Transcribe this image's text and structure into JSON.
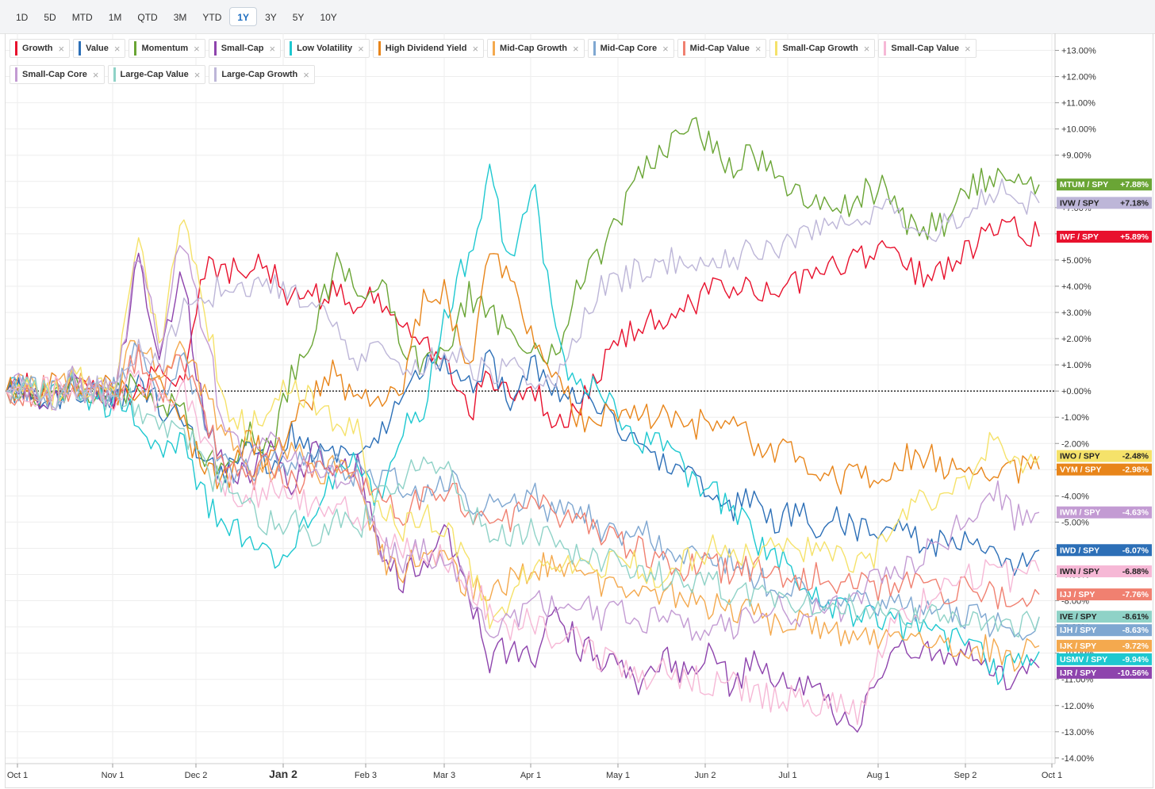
{
  "toolbar": {
    "ranges": [
      "1D",
      "5D",
      "MTD",
      "1M",
      "QTD",
      "3M",
      "YTD",
      "1Y",
      "3Y",
      "5Y",
      "10Y"
    ],
    "active": "1Y"
  },
  "legend": [
    {
      "name": "Growth",
      "color": "#e8112d"
    },
    {
      "name": "Value",
      "color": "#2c6fb7"
    },
    {
      "name": "Momentum",
      "color": "#6aa535"
    },
    {
      "name": "Small-Cap",
      "color": "#8e44ad"
    },
    {
      "name": "Low Volatility",
      "color": "#1ec8d0"
    },
    {
      "name": "High Dividend Yield",
      "color": "#e8851a"
    },
    {
      "name": "Mid-Cap Growth",
      "color": "#f4a94e"
    },
    {
      "name": "Mid-Cap Core",
      "color": "#7fa7d1"
    },
    {
      "name": "Mid-Cap Value",
      "color": "#f08070"
    },
    {
      "name": "Small-Cap Growth",
      "color": "#f5e26a"
    },
    {
      "name": "Small-Cap Value",
      "color": "#f6b8d6"
    },
    {
      "name": "Small-Cap Core",
      "color": "#c39bd3"
    },
    {
      "name": "Large-Cap Value",
      "color": "#8fd2c7"
    },
    {
      "name": "Large-Cap Growth",
      "color": "#bdb6d8"
    }
  ],
  "chart_data": {
    "type": "line",
    "x_ticks": [
      "Oct 1",
      "Nov 1",
      "Dec 2",
      "Jan 2",
      "Feb 3",
      "Mar 3",
      "Apr 1",
      "May 1",
      "Jun 2",
      "Jul 1",
      "Aug 1",
      "Sep 2",
      "Oct 1"
    ],
    "x_major_tick": "Jan 2",
    "y_ticks": [
      "+13.00%",
      "+12.00%",
      "+11.00%",
      "+10.00%",
      "+9.00%",
      "+8.00%",
      "+7.00%",
      "+6.00%",
      "+5.00%",
      "+4.00%",
      "+3.00%",
      "+2.00%",
      "+1.00%",
      "+0.00%",
      "-1.00%",
      "-2.00%",
      "-3.00%",
      "-4.00%",
      "-5.00%",
      "-6.00%",
      "-7.00%",
      "-8.00%",
      "-9.00%",
      "-10.00%",
      "-11.00%",
      "-12.00%",
      "-13.00%",
      "-14.00%"
    ],
    "ylim": [
      -14,
      13.5
    ],
    "zero_line": true,
    "series": [
      {
        "name": "Growth",
        "ticker": "IWF / SPY",
        "last": "+5.89%",
        "color": "#e8112d",
        "anchors": [
          0,
          0.3,
          -0.5,
          0.5,
          0,
          -0.2,
          0.2,
          0.6,
          0.3,
          4.8,
          4.5,
          4.8,
          4.5,
          3.4,
          3.5,
          3.8,
          3.4,
          3.6,
          3.0,
          2.0,
          1.2,
          -1.0,
          0.8,
          -0.5,
          0.2,
          -1.4,
          -0.9,
          0.8,
          2.0,
          2.5,
          2.9,
          3.2,
          3.8,
          3.6,
          3.9,
          3.7,
          4.2,
          4.7,
          4.9,
          5.2,
          5.7,
          4.7,
          4.3,
          4.6,
          5.6,
          6.5,
          6.2,
          5.9
        ]
      },
      {
        "name": "Value",
        "ticker": "IWD / SPY",
        "last": "-6.07%",
        "color": "#2c6fb7",
        "anchors": [
          0,
          0.1,
          -0.4,
          0.2,
          0,
          -0.3,
          0.1,
          -0.5,
          -1.3,
          -2.7,
          -3.2,
          -2.0,
          -3.0,
          -1.5,
          -2.6,
          -2.3,
          -2.8,
          -1.8,
          0.3,
          1.0,
          1.3,
          0.3,
          1.0,
          -0.5,
          1.1,
          0.2,
          -0.1,
          -0.3,
          -1.8,
          -2.3,
          -2.6,
          -2.8,
          -3.7,
          -4.4,
          -4.2,
          -4.9,
          -4.5,
          -5.3,
          -4.9,
          -5.4,
          -5.7,
          -5.3,
          -5.9,
          -5.6,
          -5.8,
          -6.0,
          -6.6,
          -6.07
        ]
      },
      {
        "name": "Momentum",
        "ticker": "MTUM / SPY",
        "last": "+7.88%",
        "color": "#6aa535",
        "anchors": [
          0,
          0.2,
          -0.3,
          0.1,
          -0.2,
          -0.1,
          0.2,
          -0.4,
          -0.8,
          -2.3,
          -3.1,
          -1.6,
          -2.2,
          0.5,
          2.5,
          4.8,
          3.8,
          4.3,
          2.0,
          0.8,
          1.4,
          3.7,
          3.0,
          2.0,
          1.9,
          1.3,
          4.2,
          5.2,
          6.8,
          8.6,
          9.4,
          10.5,
          9.3,
          8.4,
          9.1,
          8.0,
          7.8,
          7.2,
          6.8,
          7.6,
          7.8,
          6.5,
          6.2,
          6.6,
          7.9,
          8.4,
          8.2,
          7.88
        ]
      },
      {
        "name": "Small-Cap",
        "ticker": "IJR / SPY",
        "last": "-10.56%",
        "color": "#8e44ad",
        "anchors": [
          0,
          0.2,
          -0.6,
          0.4,
          -0.3,
          -0.2,
          5.0,
          1.0,
          4.8,
          -1.2,
          -2.7,
          -3.3,
          -2.0,
          -3.6,
          -2.1,
          -3.2,
          -2.8,
          -6.4,
          -7.2,
          -6.5,
          -5.3,
          -7.4,
          -10.5,
          -9.6,
          -10.3,
          -8.3,
          -9.7,
          -10.2,
          -10.5,
          -11.2,
          -10.2,
          -10.9,
          -9.9,
          -11.3,
          -10.4,
          -10.9,
          -11.4,
          -10.8,
          -12.8,
          -12.3,
          -10.1,
          -9.8,
          -10.0,
          -10.4,
          -10.0,
          -10.9,
          -11.0,
          -10.56
        ]
      },
      {
        "name": "Low Volatility",
        "ticker": "USMV / SPY",
        "last": "-9.94%",
        "color": "#1ec8d0",
        "anchors": [
          0,
          0.1,
          -0.2,
          0.3,
          -0.4,
          -0.6,
          -1.0,
          -2.4,
          -1.6,
          -4.1,
          -5.2,
          -5.5,
          -6.4,
          -5.9,
          -4.7,
          -3.1,
          -2.7,
          -4.2,
          -1.2,
          -0.7,
          3.0,
          5.2,
          8.2,
          4.6,
          7.8,
          2.4,
          -0.1,
          0.4,
          -1.3,
          -1.9,
          -2.2,
          -3.2,
          -3.8,
          -4.4,
          -5.6,
          -6.2,
          -7.1,
          -7.9,
          -8.3,
          -8.6,
          -8.8,
          -9.0,
          -9.2,
          -9.5,
          -9.7,
          -10.8,
          -10.5,
          -9.94
        ]
      },
      {
        "name": "High Dividend Yield",
        "ticker": "VYM / SPY",
        "last": "-2.98%",
        "color": "#e8851a",
        "anchors": [
          0,
          -0.1,
          0.3,
          -0.2,
          0.2,
          0,
          -0.3,
          0.1,
          -1.3,
          -3.1,
          -3.4,
          -1.8,
          -2.8,
          -1.1,
          -0.2,
          0.8,
          -0.6,
          -0.2,
          0.3,
          3.5,
          3.8,
          0.6,
          5.2,
          4.3,
          1.6,
          0.7,
          -1.1,
          -0.8,
          -1.3,
          -0.9,
          -1.1,
          -1.5,
          -1.0,
          -1.3,
          -1.9,
          -2.4,
          -2.3,
          -3.1,
          -3.4,
          -3.2,
          -3.2,
          -2.5,
          -2.4,
          -3.1,
          -2.7,
          -3.2,
          -3.0,
          -2.98
        ]
      },
      {
        "name": "Mid-Cap Growth",
        "ticker": "IJK / SPY",
        "last": "-9.72%",
        "color": "#f4a94e",
        "anchors": [
          0,
          0.3,
          -0.2,
          0.4,
          0,
          0.1,
          2.1,
          0.8,
          2.0,
          -0.2,
          -1.6,
          -2.8,
          -3.0,
          -2.1,
          -3.2,
          -2.7,
          -2.9,
          -6.3,
          -6.8,
          -6.2,
          -6.7,
          -7.4,
          -7.6,
          -7.2,
          -6.6,
          -6.9,
          -7.1,
          -7.3,
          -7.6,
          -8.0,
          -7.7,
          -7.9,
          -8.3,
          -8.2,
          -8.6,
          -8.8,
          -8.5,
          -9.1,
          -9.4,
          -9.3,
          -9.5,
          -9.2,
          -9.4,
          -9.6,
          -9.8,
          -9.9,
          -10.2,
          -9.72
        ]
      },
      {
        "name": "Mid-Cap Core",
        "ticker": "IJH / SPY",
        "last": "-8.63%",
        "color": "#7fa7d1",
        "anchors": [
          0,
          0.1,
          -0.2,
          0.3,
          -0.1,
          0,
          1.7,
          -0.3,
          1.5,
          -1.3,
          -2.8,
          -3.2,
          -2.3,
          -3.1,
          -2.4,
          -2.9,
          -3.1,
          -3.3,
          -3.5,
          -3.9,
          -3.3,
          -4.1,
          -4.3,
          -4.2,
          -4.0,
          -4.7,
          -4.5,
          -5.2,
          -5.6,
          -5.4,
          -6.1,
          -6.3,
          -6.7,
          -6.5,
          -7.1,
          -7.4,
          -7.6,
          -7.8,
          -8.1,
          -7.9,
          -8.2,
          -8.3,
          -8.5,
          -8.4,
          -8.6,
          -8.9,
          -9.1,
          -8.63
        ]
      },
      {
        "name": "Mid-Cap Value",
        "ticker": "IJJ / SPY",
        "last": "-7.76%",
        "color": "#f08070",
        "anchors": [
          0,
          -0.1,
          0.2,
          -0.3,
          0.1,
          -0.2,
          1.4,
          -0.1,
          1.6,
          -1.2,
          -2.7,
          -3.4,
          -2.8,
          -3.6,
          -2.9,
          -3.1,
          -3.4,
          -4.2,
          -4.6,
          -4.1,
          -3.8,
          -4.4,
          -5.0,
          -4.8,
          -4.3,
          -4.7,
          -4.9,
          -5.3,
          -5.8,
          -6.1,
          -6.4,
          -6.8,
          -6.6,
          -7.0,
          -6.7,
          -7.1,
          -7.3,
          -7.0,
          -7.4,
          -7.2,
          -7.6,
          -7.3,
          -7.5,
          -7.8,
          -7.4,
          -7.9,
          -8.1,
          -7.76
        ]
      },
      {
        "name": "Small-Cap Growth",
        "ticker": "IWO / SPY",
        "last": "-2.48%",
        "color": "#f5e26a",
        "anchors": [
          0,
          0.4,
          -0.3,
          0.5,
          0.1,
          0.2,
          6.2,
          1.3,
          7.0,
          3.2,
          -0.7,
          -1.5,
          -0.8,
          0.4,
          -0.6,
          -1.3,
          -1.6,
          -4.6,
          -5.2,
          -4.8,
          -5.3,
          -6.4,
          -8.6,
          -8.0,
          -6.5,
          -6.7,
          -6.3,
          -6.6,
          -6.4,
          -6.8,
          -7.1,
          -6.4,
          -6.0,
          -6.2,
          -6.4,
          -5.8,
          -6.1,
          -5.7,
          -6.3,
          -6.6,
          -5.9,
          -4.5,
          -4.1,
          -3.8,
          -3.4,
          -1.5,
          -2.8,
          -2.48
        ]
      },
      {
        "name": "Small-Cap Value",
        "ticker": "IWN / SPY",
        "last": "-6.88%",
        "color": "#f6b8d6",
        "anchors": [
          0,
          -0.2,
          0.1,
          -0.4,
          0.1,
          -0.3,
          0.6,
          -0.7,
          0.4,
          -2.1,
          -3.6,
          -4.2,
          -3.5,
          -3.9,
          -4.5,
          -4.1,
          -4.8,
          -5.3,
          -5.8,
          -6.1,
          -6.5,
          -7.2,
          -8.4,
          -9.1,
          -8.7,
          -9.6,
          -9.2,
          -10.1,
          -10.5,
          -11.0,
          -10.6,
          -10.9,
          -11.3,
          -11.1,
          -11.5,
          -11.8,
          -11.6,
          -11.9,
          -12.1,
          -12.4,
          -9.3,
          -8.6,
          -7.9,
          -7.4,
          -7.1,
          -6.9,
          -7.2,
          -6.88
        ]
      },
      {
        "name": "Small-Cap Core",
        "ticker": "IWM / SPY",
        "last": "-4.63%",
        "color": "#c39bd3",
        "anchors": [
          0,
          0.3,
          -0.4,
          0.5,
          -0.2,
          0,
          5.5,
          1.6,
          6.2,
          2.4,
          -1.7,
          -2.7,
          -1.9,
          -2.6,
          -2.9,
          -3.3,
          -3.6,
          -5.9,
          -6.4,
          -6.1,
          -6.6,
          -7.3,
          -9.2,
          -8.8,
          -8.1,
          -8.4,
          -8.0,
          -8.6,
          -8.3,
          -8.9,
          -8.5,
          -9.2,
          -8.8,
          -9.0,
          -8.6,
          -8.2,
          -8.5,
          -7.9,
          -8.4,
          -7.6,
          -7.0,
          -6.6,
          -6.1,
          -5.4,
          -5.0,
          -3.8,
          -4.9,
          -4.63
        ]
      },
      {
        "name": "Large-Cap Value",
        "ticker": "IVE / SPY",
        "last": "-8.61%",
        "color": "#8fd2c7",
        "anchors": [
          0,
          0.2,
          -0.3,
          0.2,
          -0.1,
          -0.2,
          -0.5,
          -1.4,
          -1.2,
          -2.9,
          -3.8,
          -4.6,
          -5.1,
          -4.9,
          -5.4,
          -5.0,
          -5.3,
          -4.1,
          -3.2,
          -2.6,
          -3.0,
          -4.3,
          -5.2,
          -5.6,
          -5.4,
          -5.9,
          -6.1,
          -6.3,
          -6.6,
          -6.9,
          -7.1,
          -7.4,
          -7.3,
          -7.6,
          -7.9,
          -7.7,
          -8.1,
          -8.0,
          -8.3,
          -8.2,
          -8.4,
          -8.5,
          -8.7,
          -8.6,
          -8.9,
          -8.8,
          -9.0,
          -8.61
        ]
      },
      {
        "name": "Large-Cap Growth",
        "ticker": "IVW / SPY",
        "last": "+7.18%",
        "color": "#bdb6d8",
        "anchors": [
          0,
          0.2,
          -0.4,
          0.4,
          0,
          0.2,
          1.5,
          0.8,
          3.2,
          3.6,
          4.0,
          3.8,
          4.2,
          3.6,
          3.1,
          2.4,
          1.3,
          1.6,
          1.2,
          0.9,
          1.4,
          1.1,
          0.7,
          0.9,
          0.5,
          0.2,
          2.3,
          3.8,
          4.3,
          4.6,
          4.9,
          5.2,
          4.6,
          5.1,
          5.4,
          5.2,
          6.1,
          6.4,
          6.7,
          6.5,
          6.9,
          6.3,
          6.0,
          6.4,
          7.2,
          7.6,
          7.4,
          7.18
        ]
      }
    ]
  }
}
